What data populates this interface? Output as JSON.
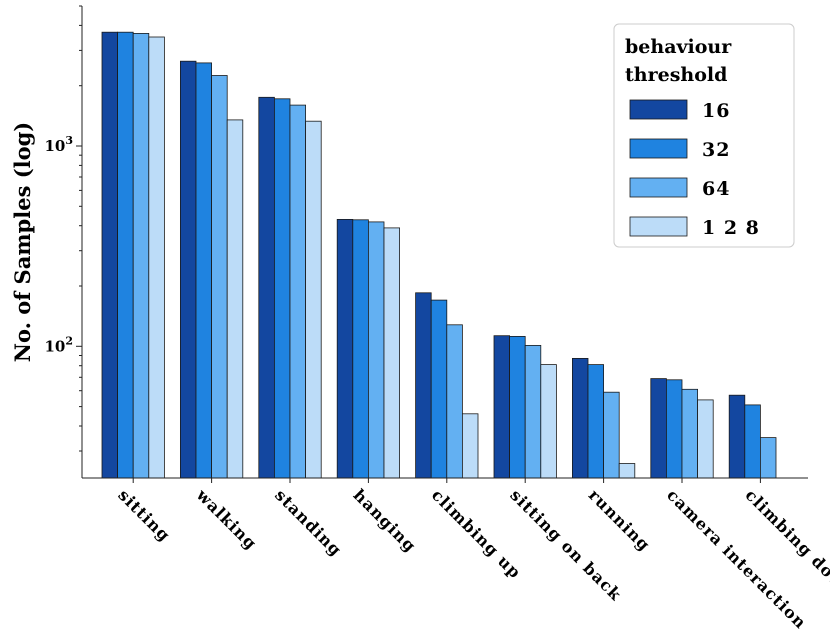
{
  "chart_data": {
    "type": "bar",
    "ylabel": "No. of Samples (log)",
    "yscale": "log",
    "ylim": [
      22,
      5000
    ],
    "yticks": [
      {
        "value": 100,
        "base": "10",
        "exp": "2"
      },
      {
        "value": 1000,
        "base": "10",
        "exp": "3"
      }
    ],
    "categories": [
      "sitting",
      "walking",
      "standing",
      "hanging",
      "climbing up",
      "sitting on back",
      "running",
      "camera interaction",
      "climbing down"
    ],
    "legend": {
      "title_lines": [
        "behaviour",
        "threshold"
      ],
      "placement": "top-right"
    },
    "series": [
      {
        "name": "16",
        "color": "#1347a0",
        "values": [
          3700,
          2650,
          1750,
          430,
          185,
          113,
          87,
          69,
          57
        ]
      },
      {
        "name": "32",
        "color": "#1f83e0",
        "values": [
          3700,
          2600,
          1720,
          428,
          170,
          112,
          81,
          68,
          51
        ]
      },
      {
        "name": "64",
        "color": "#63b0f2",
        "values": [
          3650,
          2250,
          1600,
          418,
          128,
          101,
          59,
          61,
          35
        ]
      },
      {
        "name": "1 2 8",
        "color": "#bcdcf8",
        "values": [
          3500,
          1350,
          1330,
          390,
          46,
          81,
          26,
          54,
          null
        ]
      }
    ]
  }
}
